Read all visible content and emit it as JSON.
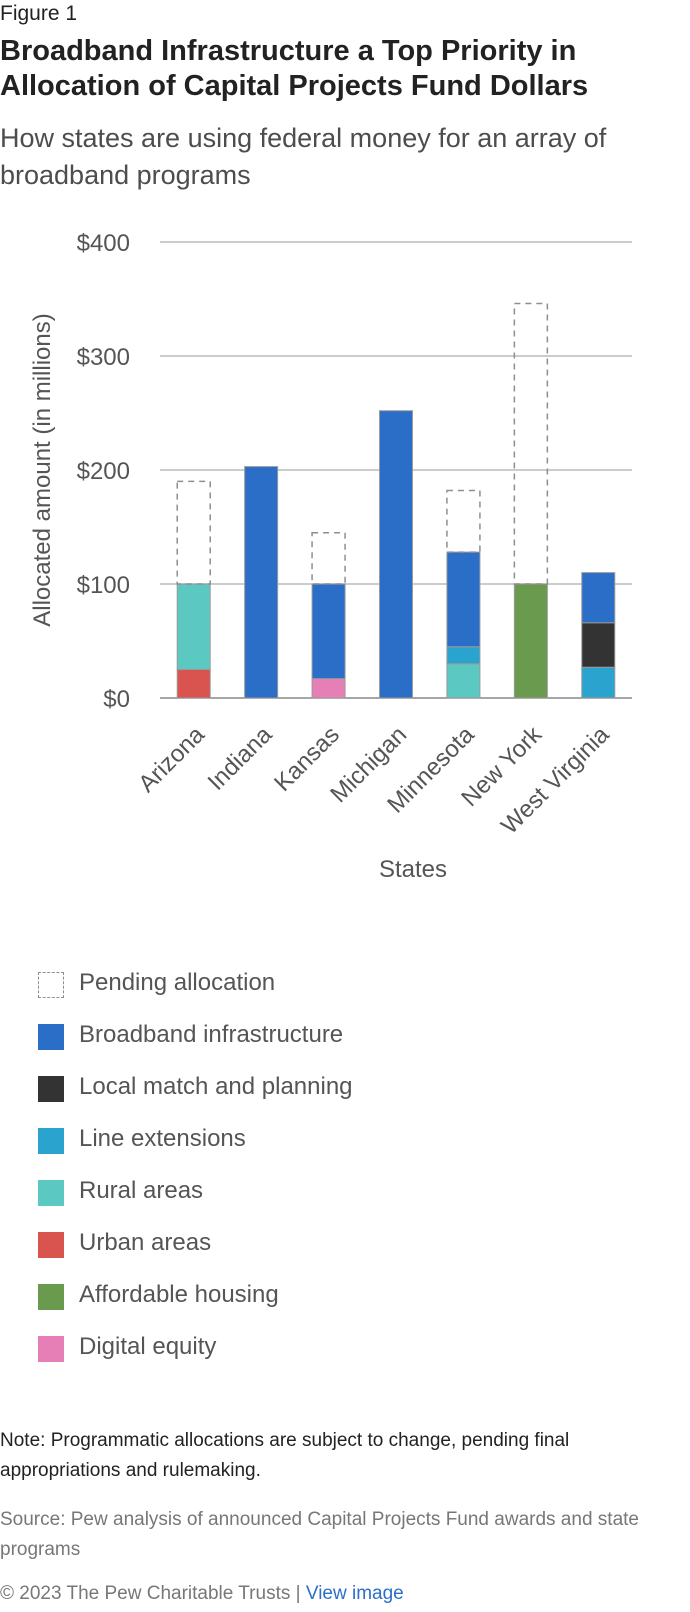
{
  "figure_label": "Figure 1",
  "title": "Broadband Infrastructure a Top Priority in Allocation of Capital Projects Fund Dollars",
  "subtitle": "How states are using federal money for an array of broadband programs",
  "note": "Note: Programmatic allocations are subject to change, pending final appropriations and rulemaking.",
  "source": "Source: Pew analysis of announced Capital Projects Fund awards and state programs",
  "footer": {
    "copyright": "© 2023 The Pew Charitable Trusts",
    "separator": "|",
    "link_label": "View image"
  },
  "chart_data": {
    "type": "bar",
    "stacked": true,
    "xlabel": "States",
    "ylabel": "Allocated amount (in millions)",
    "ylim": [
      0,
      400
    ],
    "yticks": [
      0,
      100,
      200,
      300,
      400
    ],
    "ytick_labels": [
      "$0",
      "$100",
      "$200",
      "$300",
      "$400"
    ],
    "grid": true,
    "legend_position": "bottom",
    "categories": [
      "Arizona",
      "Indiana",
      "Kansas",
      "Michigan",
      "Minnesota",
      "New York",
      "West Virginia"
    ],
    "series": [
      {
        "name": "Urban areas",
        "color": "#d9534f",
        "values": [
          25,
          0,
          0,
          0,
          0,
          0,
          0
        ]
      },
      {
        "name": "Rural areas",
        "color": "#5bc8c2",
        "values": [
          75,
          0,
          0,
          0,
          30,
          0,
          0
        ]
      },
      {
        "name": "Digital equity",
        "color": "#e67fb6",
        "values": [
          0,
          0,
          17,
          0,
          0,
          0,
          0
        ]
      },
      {
        "name": "Line extensions",
        "color": "#2aa3cf",
        "values": [
          0,
          0,
          0,
          0,
          15,
          0,
          27
        ]
      },
      {
        "name": "Local match and planning",
        "color": "#333333",
        "values": [
          0,
          0,
          0,
          0,
          0,
          0,
          39
        ]
      },
      {
        "name": "Affordable housing",
        "color": "#6a9a4e",
        "values": [
          0,
          0,
          0,
          0,
          0,
          100,
          0
        ]
      },
      {
        "name": "Broadband infrastructure",
        "color": "#2b6ec7",
        "values": [
          0,
          203,
          83,
          252,
          83,
          0,
          44
        ]
      },
      {
        "name": "Pending allocation",
        "color": "#999999",
        "dashed": true,
        "values": [
          90,
          0,
          45,
          0,
          54,
          246,
          0
        ]
      }
    ],
    "legend_order": [
      "Pending allocation",
      "Broadband infrastructure",
      "Local match and planning",
      "Line extensions",
      "Rural areas",
      "Urban areas",
      "Affordable housing",
      "Digital equity"
    ]
  }
}
